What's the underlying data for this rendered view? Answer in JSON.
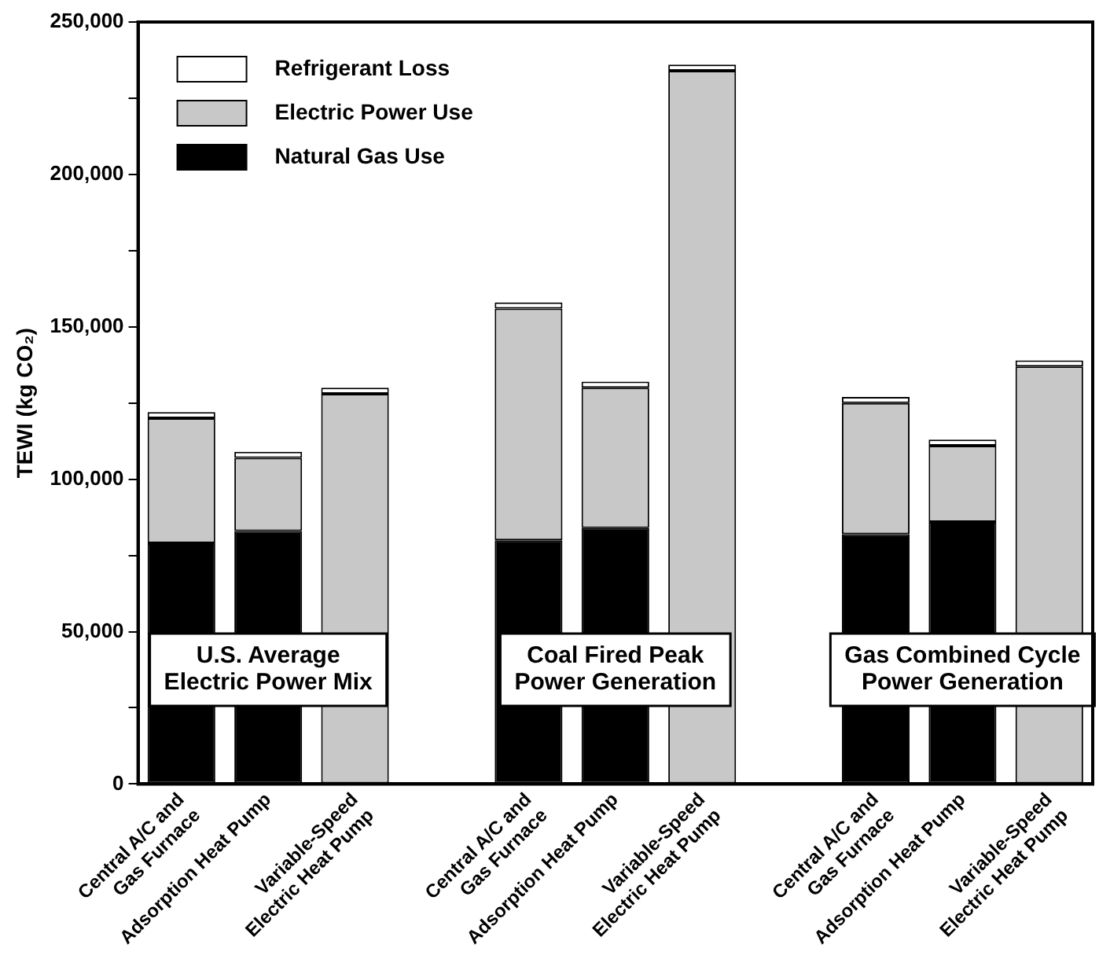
{
  "chart_data": {
    "type": "bar",
    "stacked": true,
    "ylabel": "TEWI (kg CO₂)",
    "categories": [
      "Central A/C and\nGas Furnace",
      "Adsorption Heat Pump",
      "Variable-Speed\nElectric Heat Pump",
      null,
      "Central A/C and\nGas Furnace",
      "Adsorption Heat Pump",
      "Variable-Speed\nElectric Heat Pump",
      null,
      "Central A/C and\nGas Furnace",
      "Adsorption Heat Pump",
      "Variable-Speed\nElectric Heat Pump"
    ],
    "series": [
      {
        "name": "Natural Gas Use",
        "color": "#000000",
        "values": [
          79000,
          83000,
          null,
          null,
          80000,
          84000,
          null,
          null,
          82000,
          86000,
          null
        ]
      },
      {
        "name": "Electric Power Use",
        "color": "#c8c8c8",
        "values": [
          41000,
          24000,
          128000,
          null,
          76000,
          46000,
          234000,
          null,
          43000,
          25000,
          137000
        ]
      },
      {
        "name": "Refrigerant Loss",
        "color": "#ffffff",
        "values": [
          2000,
          2000,
          2000,
          null,
          2000,
          2000,
          2000,
          null,
          2000,
          2000,
          2000
        ]
      }
    ],
    "ylim": [
      0,
      250000
    ],
    "yticks": [
      {
        "value": 0,
        "label": "0"
      },
      {
        "value": 25000,
        "label": null
      },
      {
        "value": 50000,
        "label": "50,000"
      },
      {
        "value": 75000,
        "label": null
      },
      {
        "value": 100000,
        "label": "100,000"
      },
      {
        "value": 125000,
        "label": null
      },
      {
        "value": 150000,
        "label": "150,000"
      },
      {
        "value": 175000,
        "label": null
      },
      {
        "value": 200000,
        "label": "200,000"
      },
      {
        "value": 225000,
        "label": null
      },
      {
        "value": 250000,
        "label": "250,000"
      }
    ],
    "grid": false,
    "legend": "top left",
    "annotations": [
      "U.S. Average\nElectric Power Mix",
      "Coal Fired Peak\nPower Generation",
      "Gas Combined Cycle\nPower Generation"
    ]
  }
}
